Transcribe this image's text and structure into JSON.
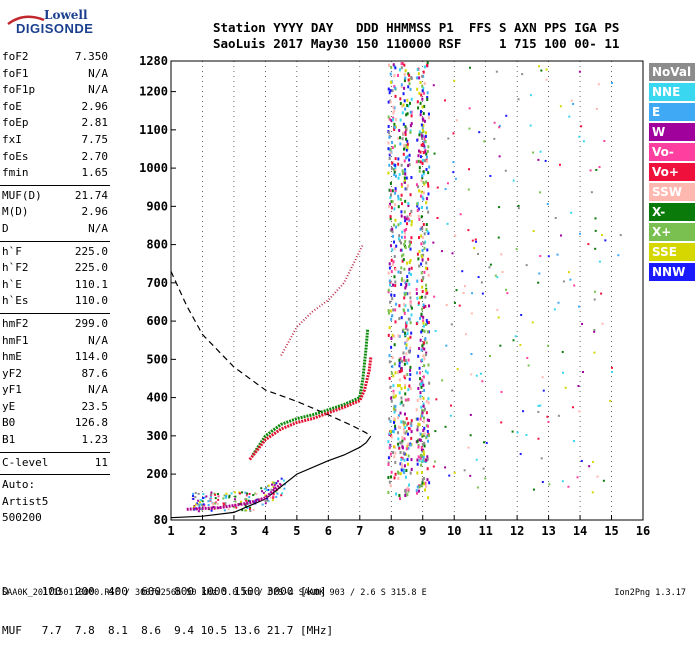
{
  "logo": {
    "top": "Lowell",
    "bottom": "DIGISONDE"
  },
  "header": {
    "line1": "Station YYYY DAY   DDD HHMMSS P1  FFS S AXN PPS IGA PS",
    "line2": "SaoLuis 2017 May30 150 110000 RSF     1 715 100 00- 11"
  },
  "params": [
    {
      "name": "foF2",
      "value": "7.350"
    },
    {
      "name": "foF1",
      "value": "N/A"
    },
    {
      "name": "foF1p",
      "value": "N/A"
    },
    {
      "name": "foE",
      "value": "2.96"
    },
    {
      "name": "foEp",
      "value": "2.81"
    },
    {
      "name": "fxI",
      "value": "7.75"
    },
    {
      "name": "foEs",
      "value": "2.70"
    },
    {
      "name": "fmin",
      "value": "1.65"
    },
    {
      "sep": true
    },
    {
      "name": "MUF(D)",
      "value": "21.74"
    },
    {
      "name": "M(D)",
      "value": "2.96"
    },
    {
      "name": "D",
      "value": "N/A"
    },
    {
      "sep": true
    },
    {
      "name": "h`F",
      "value": "225.0"
    },
    {
      "name": "h`F2",
      "value": "225.0"
    },
    {
      "name": "h`E",
      "value": "110.1"
    },
    {
      "name": "h`Es",
      "value": "110.0"
    },
    {
      "sep": true
    },
    {
      "name": "hmF2",
      "value": "299.0"
    },
    {
      "name": "hmF1",
      "value": "N/A"
    },
    {
      "name": "hmE",
      "value": "114.0"
    },
    {
      "name": "yF2",
      "value": "87.6"
    },
    {
      "name": "yF1",
      "value": "N/A"
    },
    {
      "name": "yE",
      "value": "23.5"
    },
    {
      "name": "B0",
      "value": "126.8"
    },
    {
      "name": "B1",
      "value": "1.23"
    },
    {
      "sep": true
    },
    {
      "name": "C-level",
      "value": "11"
    },
    {
      "sep": true
    }
  ],
  "autoscale": {
    "line1": "Auto:",
    "line2": "Artist5",
    "line3": "500200"
  },
  "legend": [
    {
      "label": "NoVal",
      "color": "#8c8c8c"
    },
    {
      "label": "NNE",
      "color": "#3ad7f0"
    },
    {
      "label": "E",
      "color": "#3fa9f5"
    },
    {
      "label": "W",
      "color": "#a0009c"
    },
    {
      "label": "Vo-",
      "color": "#ff3fa0"
    },
    {
      "label": "Vo+",
      "color": "#f0103c"
    },
    {
      "label": "SSW",
      "color": "#ffb8b0"
    },
    {
      "label": "X-",
      "color": "#0a7a0a"
    },
    {
      "label": "X+",
      "color": "#7ac050"
    },
    {
      "label": "SSE",
      "color": "#d6d600"
    },
    {
      "label": "NNW",
      "color": "#1a1aff"
    }
  ],
  "dmuf": {
    "line1": "D     100  200  400  600  800 1000 1500 3000 [km]",
    "line2": "MUF   7.7  7.8  8.1  8.6  9.4 10.5 13.6 21.7 [MHz]"
  },
  "footer": {
    "left": "SAA0K_2017150110000.RSF / 300fx256h 50 kHz 5.0 km / DPS-4 SAA0K 903 / 2.6 S 315.8 E",
    "right": "Ion2Png 1.3.17"
  },
  "chart_data": {
    "type": "scatter",
    "xlim": [
      1,
      16
    ],
    "ylim": [
      80,
      1280
    ],
    "x_ticks": [
      1,
      2,
      3,
      4,
      5,
      6,
      7,
      8,
      9,
      10,
      11,
      12,
      13,
      14,
      15,
      16
    ],
    "y_ticks": [
      80,
      200,
      300,
      400,
      500,
      600,
      700,
      800,
      900,
      1000,
      1100,
      1200,
      1280
    ],
    "profile_solid": [
      [
        1,
        86
      ],
      [
        2,
        90
      ],
      [
        3,
        100
      ],
      [
        4,
        135
      ],
      [
        5,
        200
      ],
      [
        6,
        235
      ],
      [
        6.5,
        250
      ],
      [
        7,
        270
      ],
      [
        7.2,
        282
      ],
      [
        7.35,
        299
      ]
    ],
    "profile_dashed": [
      [
        1,
        730
      ],
      [
        1.5,
        640
      ],
      [
        2,
        565
      ],
      [
        3,
        480
      ],
      [
        4,
        420
      ],
      [
        5,
        390
      ],
      [
        6,
        355
      ],
      [
        6.8,
        325
      ],
      [
        7.2,
        308
      ],
      [
        7.35,
        299
      ]
    ],
    "trace_red": [
      [
        3.5,
        238
      ],
      [
        4,
        290
      ],
      [
        4.5,
        318
      ],
      [
        5,
        335
      ],
      [
        5.5,
        345
      ],
      [
        6,
        360
      ],
      [
        6.5,
        375
      ],
      [
        7,
        392
      ],
      [
        7.15,
        420
      ],
      [
        7.3,
        470
      ],
      [
        7.35,
        505
      ]
    ],
    "trace_green": [
      [
        3.6,
        250
      ],
      [
        4,
        300
      ],
      [
        4.5,
        330
      ],
      [
        5,
        345
      ],
      [
        5.5,
        355
      ],
      [
        6,
        368
      ],
      [
        6.5,
        382
      ],
      [
        7,
        400
      ],
      [
        7.1,
        450
      ],
      [
        7.2,
        530
      ],
      [
        7.25,
        580
      ]
    ],
    "trace_high": [
      [
        4.5,
        510
      ],
      [
        5,
        585
      ],
      [
        5.5,
        625
      ],
      [
        6,
        655
      ],
      [
        6.5,
        700
      ],
      [
        6.8,
        750
      ],
      [
        7.1,
        800
      ]
    ],
    "trace_low": [
      [
        1.5,
        108
      ],
      [
        2,
        110
      ],
      [
        2.5,
        112
      ],
      [
        3,
        118
      ],
      [
        3.5,
        125
      ],
      [
        4,
        138
      ],
      [
        4.5,
        175
      ]
    ]
  }
}
